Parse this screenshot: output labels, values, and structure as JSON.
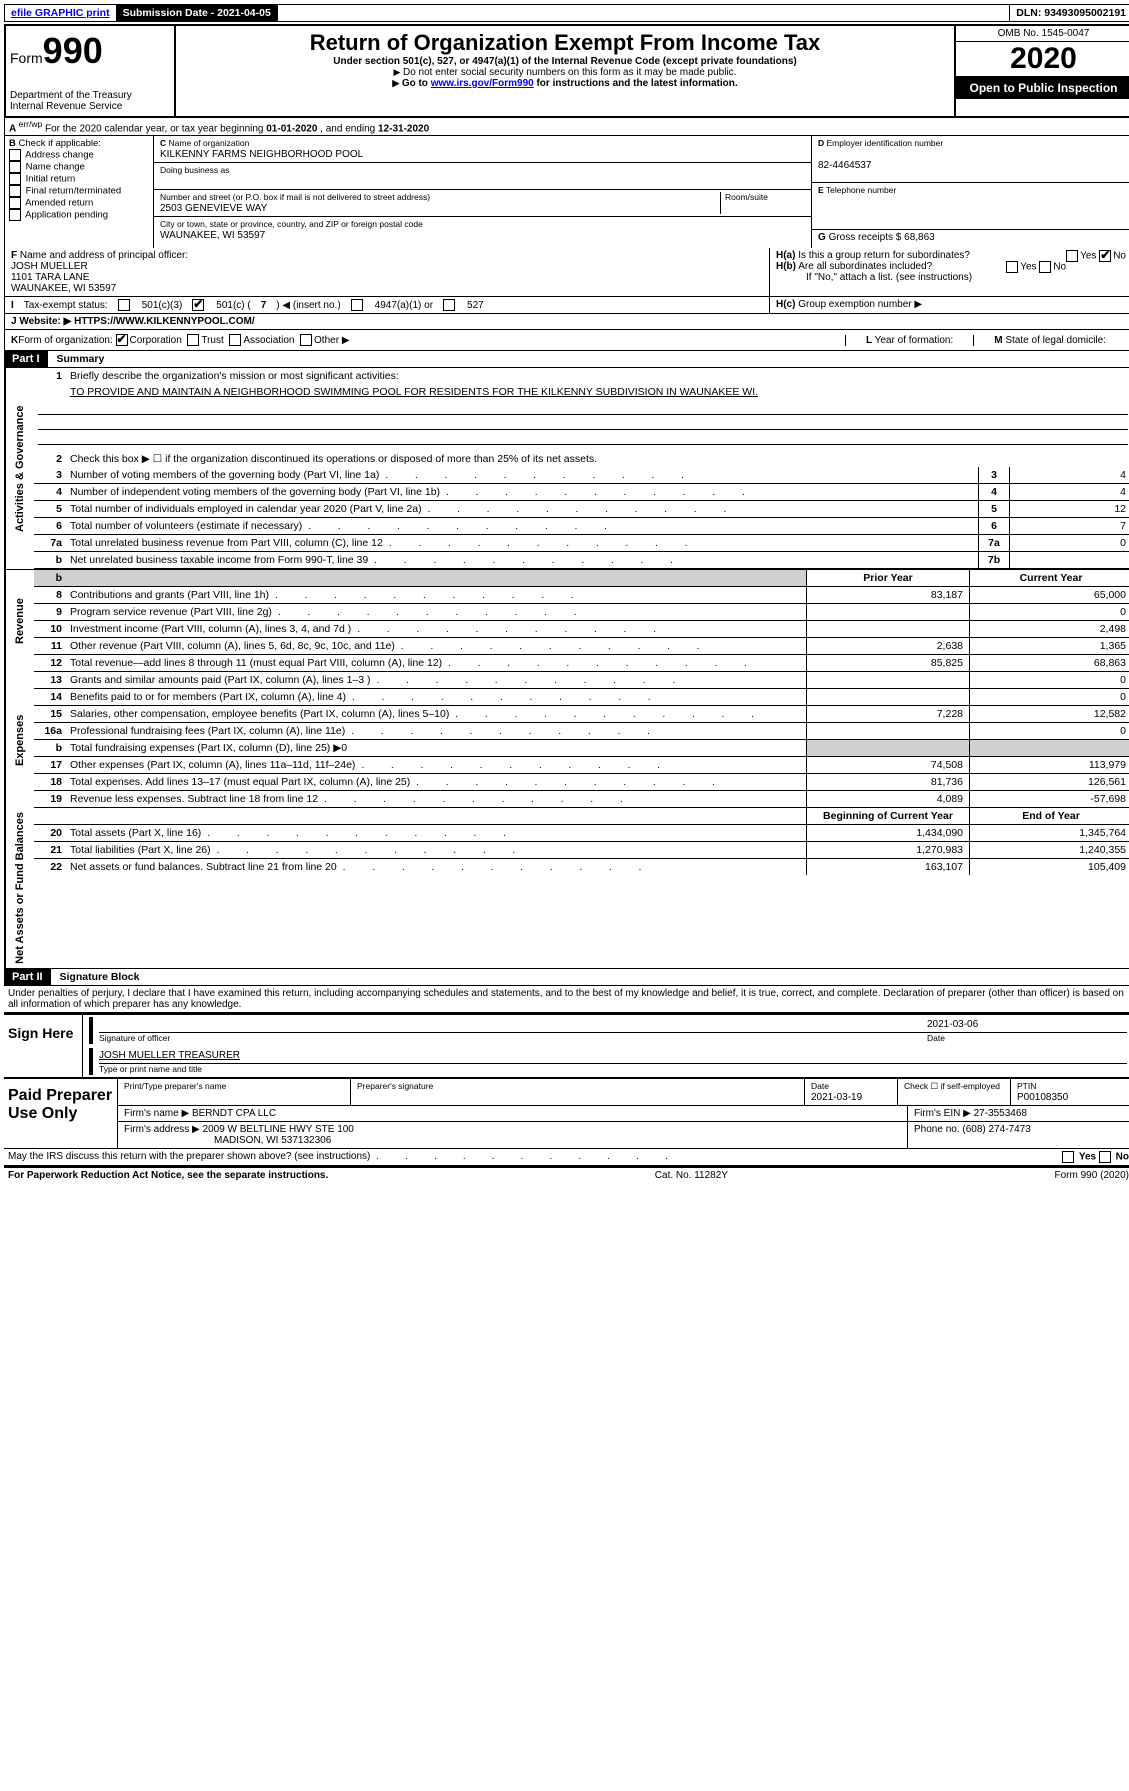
{
  "topbar": {
    "efile": "efile GRAPHIC print",
    "submission_label": "Submission Date - 2021-04-05",
    "dln": "DLN: 93493095002191"
  },
  "header": {
    "form_label": "Form",
    "form_num": "990",
    "dept": "Department of the Treasury",
    "irs": "Internal Revenue Service",
    "title": "Return of Organization Exempt From Income Tax",
    "subtitle": "Under section 501(c), 527, or 4947(a)(1) of the Internal Revenue Code (except private foundations)",
    "note1": "Do not enter social security numbers on this form as it may be made public.",
    "note2_pre": "Go to ",
    "note2_link": "www.irs.gov/Form990",
    "note2_post": " for instructions and the latest information.",
    "omb": "OMB No. 1545-0047",
    "year": "2020",
    "open": "Open to Public Inspection"
  },
  "rowA": {
    "text_pre": "For the 2020 calendar year, or tax year beginning ",
    "begin": "01-01-2020",
    "mid": " , and ending ",
    "end": "12-31-2020"
  },
  "colB": {
    "label": "Check if applicable:",
    "opts": [
      "Address change",
      "Name change",
      "Initial return",
      "Final return/terminated",
      "Amended return",
      "Application pending"
    ]
  },
  "colC": {
    "name_label": "Name of organization",
    "name": "KILKENNY FARMS NEIGHBORHOOD POOL",
    "dba_label": "Doing business as",
    "addr_label": "Number and street (or P.O. box if mail is not delivered to street address)",
    "room_label": "Room/suite",
    "addr": "2503 GENEVIEVE WAY",
    "city_label": "City or town, state or province, country, and ZIP or foreign postal code",
    "city": "WAUNAKEE, WI  53597"
  },
  "colD": {
    "ein_label": "Employer identification number",
    "ein": "82-4464537",
    "phone_label": "Telephone number",
    "gross_label": "Gross receipts $",
    "gross": "68,863"
  },
  "rowF": {
    "label": "Name and address of principal officer:",
    "name": "JOSH MUELLER",
    "addr1": "1101 TARA LANE",
    "addr2": "WAUNAKEE, WI  53597",
    "Ha": "Is this a group return for subordinates?",
    "Hb": "Are all subordinates included?",
    "Hb_note": "If \"No,\" attach a list. (see instructions)",
    "Hc": "Group exemption number ▶"
  },
  "rowI": {
    "label": "Tax-exempt status:",
    "opt1": "501(c)(3)",
    "opt2_pre": "501(c) ( ",
    "opt2_num": "7",
    "opt2_post": " ) ◀ (insert no.)",
    "opt3": "4947(a)(1) or",
    "opt4": "527"
  },
  "rowJ": {
    "label": "Website: ▶",
    "url": "HTTPS://WWW.KILKENNYPOOL.COM/"
  },
  "rowK": {
    "label": "Form of organization:",
    "opts": [
      "Corporation",
      "Trust",
      "Association",
      "Other ▶"
    ],
    "L": "Year of formation:",
    "M": "State of legal domicile:"
  },
  "part1": {
    "hdr": "Part I",
    "title": "Summary",
    "l1": "Briefly describe the organization's mission or most significant activities:",
    "l1_text": "TO PROVIDE AND MAINTAIN A NEIGHBORHOOD SWIMMING POOL FOR RESIDENTS FOR THE KILKENNY SUBDIVISION IN WAUNAKEE WI.",
    "l2": "Check this box ▶ ☐  if the organization discontinued its operations or disposed of more than 25% of its net assets.",
    "lines_gov": [
      {
        "n": "3",
        "d": "Number of voting members of the governing body (Part VI, line 1a)",
        "box": "3",
        "v": "4"
      },
      {
        "n": "4",
        "d": "Number of independent voting members of the governing body (Part VI, line 1b)",
        "box": "4",
        "v": "4"
      },
      {
        "n": "5",
        "d": "Total number of individuals employed in calendar year 2020 (Part V, line 2a)",
        "box": "5",
        "v": "12"
      },
      {
        "n": "6",
        "d": "Total number of volunteers (estimate if necessary)",
        "box": "6",
        "v": "7"
      },
      {
        "n": "7a",
        "d": "Total unrelated business revenue from Part VIII, column (C), line 12",
        "box": "7a",
        "v": "0"
      },
      {
        "n": "b",
        "d": "Net unrelated business taxable income from Form 990-T, line 39",
        "box": "7b",
        "v": ""
      }
    ],
    "col_hdr_prior": "Prior Year",
    "col_hdr_curr": "Current Year",
    "rev": [
      {
        "n": "8",
        "d": "Contributions and grants (Part VIII, line 1h)",
        "p": "83,187",
        "c": "65,000"
      },
      {
        "n": "9",
        "d": "Program service revenue (Part VIII, line 2g)",
        "p": "",
        "c": "0"
      },
      {
        "n": "10",
        "d": "Investment income (Part VIII, column (A), lines 3, 4, and 7d )",
        "p": "",
        "c": "2,498"
      },
      {
        "n": "11",
        "d": "Other revenue (Part VIII, column (A), lines 5, 6d, 8c, 9c, 10c, and 11e)",
        "p": "2,638",
        "c": "1,365"
      },
      {
        "n": "12",
        "d": "Total revenue—add lines 8 through 11 (must equal Part VIII, column (A), line 12)",
        "p": "85,825",
        "c": "68,863"
      }
    ],
    "exp": [
      {
        "n": "13",
        "d": "Grants and similar amounts paid (Part IX, column (A), lines 1–3 )",
        "p": "",
        "c": "0"
      },
      {
        "n": "14",
        "d": "Benefits paid to or for members (Part IX, column (A), line 4)",
        "p": "",
        "c": "0"
      },
      {
        "n": "15",
        "d": "Salaries, other compensation, employee benefits (Part IX, column (A), lines 5–10)",
        "p": "7,228",
        "c": "12,582"
      },
      {
        "n": "16a",
        "d": "Professional fundraising fees (Part IX, column (A), line 11e)",
        "p": "",
        "c": "0"
      },
      {
        "n": "b",
        "d": "Total fundraising expenses (Part IX, column (D), line 25) ▶0",
        "p": "GRAY",
        "c": "GRAY"
      },
      {
        "n": "17",
        "d": "Other expenses (Part IX, column (A), lines 11a–11d, 11f–24e)",
        "p": "74,508",
        "c": "113,979"
      },
      {
        "n": "18",
        "d": "Total expenses. Add lines 13–17 (must equal Part IX, column (A), line 25)",
        "p": "81,736",
        "c": "126,561"
      },
      {
        "n": "19",
        "d": "Revenue less expenses. Subtract line 18 from line 12",
        "p": "4,089",
        "c": "-57,698"
      }
    ],
    "col_hdr_beg": "Beginning of Current Year",
    "col_hdr_end": "End of Year",
    "net": [
      {
        "n": "20",
        "d": "Total assets (Part X, line 16)",
        "p": "1,434,090",
        "c": "1,345,764"
      },
      {
        "n": "21",
        "d": "Total liabilities (Part X, line 26)",
        "p": "1,270,983",
        "c": "1,240,355"
      },
      {
        "n": "22",
        "d": "Net assets or fund balances. Subtract line 21 from line 20",
        "p": "163,107",
        "c": "105,409"
      }
    ]
  },
  "sidelabels": {
    "gov": "Activities & Governance",
    "rev": "Revenue",
    "exp": "Expenses",
    "net": "Net Assets or Fund Balances"
  },
  "part2": {
    "hdr": "Part II",
    "title": "Signature Block",
    "decl": "Under penalties of perjury, I declare that I have examined this return, including accompanying schedules and statements, and to the best of my knowledge and belief, it is true, correct, and complete. Declaration of preparer (other than officer) is based on all information of which preparer has any knowledge."
  },
  "sign": {
    "label": "Sign Here",
    "sig_of": "Signature of officer",
    "date": "2021-03-06",
    "date_label": "Date",
    "name": "JOSH MUELLER TREASURER",
    "name_label": "Type or print name and title"
  },
  "prep": {
    "label": "Paid Preparer Use Only",
    "h1": "Print/Type preparer's name",
    "h2": "Preparer's signature",
    "h3": "Date",
    "date": "2021-03-19",
    "h4": "Check ☐ if self-employed",
    "h5": "PTIN",
    "ptin": "P00108350",
    "firm_label": "Firm's name    ▶",
    "firm": "BERNDT CPA LLC",
    "ein_label": "Firm's EIN ▶",
    "ein": "27-3553468",
    "addr_label": "Firm's address ▶",
    "addr1": "2009 W BELTLINE HWY STE 100",
    "addr2": "MADISON, WI  537132306",
    "phone_label": "Phone no.",
    "phone": "(608) 274-7473"
  },
  "footer": {
    "discuss": "May the IRS discuss this return with the preparer shown above? (see instructions)",
    "paperwork": "For Paperwork Reduction Act Notice, see the separate instructions.",
    "cat": "Cat. No. 11282Y",
    "form": "Form 990 (2020)"
  }
}
